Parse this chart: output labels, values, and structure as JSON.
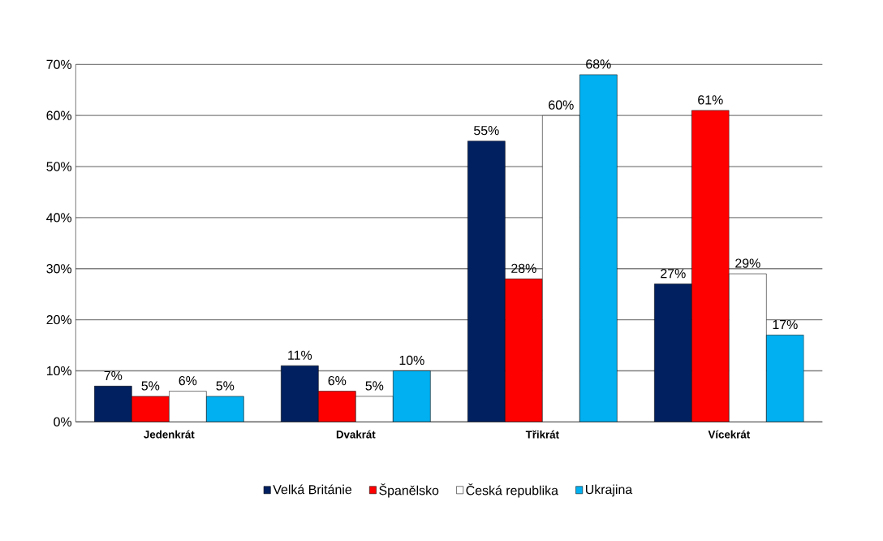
{
  "chart_data": {
    "type": "bar",
    "categories": [
      "Jedenkrát",
      "Dvakrát",
      "Třikrát",
      "Vícekrát"
    ],
    "series": [
      {
        "name": "Velká Británie",
        "color": "#002060",
        "values": [
          7,
          11,
          55,
          27
        ],
        "value_labels": [
          "7%",
          "11%",
          "55%",
          "27%"
        ]
      },
      {
        "name": "Španělsko",
        "color": "#ff0000",
        "values": [
          5,
          6,
          28,
          61
        ],
        "value_labels": [
          "5%",
          "6%",
          "28%",
          "61%"
        ]
      },
      {
        "name": "Česká republika",
        "color": "#ffffff",
        "values": [
          6,
          5,
          60,
          29
        ],
        "value_labels": [
          "6%",
          "5%",
          "60%",
          "29%"
        ]
      },
      {
        "name": "Ukrajina",
        "color": "#00b0f0",
        "values": [
          5,
          10,
          68,
          17
        ],
        "value_labels": [
          "5%",
          "10%",
          "68%",
          "17%"
        ]
      }
    ],
    "ylim": [
      0,
      70
    ],
    "yticks": [
      {
        "value": 0,
        "label": "0%"
      },
      {
        "value": 10,
        "label": "10%"
      },
      {
        "value": 20,
        "label": "20%"
      },
      {
        "value": 30,
        "label": "30%"
      },
      {
        "value": 40,
        "label": "40%"
      },
      {
        "value": 50,
        "label": "50%"
      },
      {
        "value": 60,
        "label": "60%"
      },
      {
        "value": 70,
        "label": "70%"
      }
    ],
    "grid": "y",
    "legend": "bottom"
  }
}
